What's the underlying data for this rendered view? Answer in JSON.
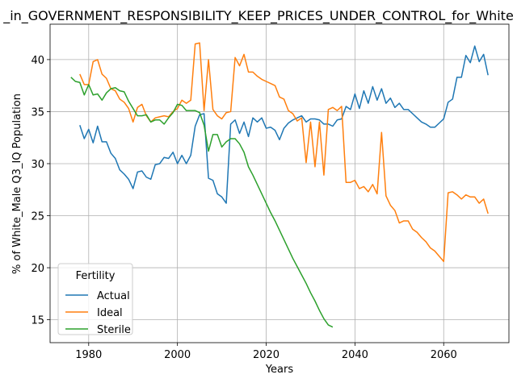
{
  "chart_data": {
    "type": "line",
    "title": "_in_GOVERNMENT_RESPONSIBILITY_KEEP_PRICES_UNDER_CONTROL_for_White",
    "x_label": "Years",
    "y_label": "% of White_Male Q3_IQ Population",
    "legend_title": "Fertility",
    "legend_loc": "lower left",
    "grid": true,
    "xlim": [
      1971.3,
      2074.7
    ],
    "ylim": [
      12.8,
      43.4
    ],
    "xticks": [
      1980,
      2000,
      2020,
      2040,
      2060
    ],
    "yticks": [
      15,
      20,
      25,
      30,
      35,
      40
    ],
    "x": [
      1976,
      1977,
      1978,
      1979,
      1980,
      1981,
      1982,
      1983,
      1984,
      1985,
      1986,
      1987,
      1988,
      1989,
      1990,
      1991,
      1992,
      1993,
      1994,
      1995,
      1996,
      1997,
      1998,
      1999,
      2000,
      2001,
      2002,
      2003,
      2004,
      2005,
      2006,
      2007,
      2008,
      2009,
      2010,
      2011,
      2012,
      2013,
      2014,
      2015,
      2016,
      2017,
      2018,
      2019,
      2020,
      2021,
      2022,
      2023,
      2024,
      2025,
      2026,
      2027,
      2028,
      2029,
      2030,
      2031,
      2032,
      2033,
      2034,
      2035,
      2036,
      2037,
      2038,
      2039,
      2040,
      2041,
      2042,
      2043,
      2044,
      2045,
      2046,
      2047,
      2048,
      2049,
      2050,
      2051,
      2052,
      2053,
      2054,
      2055,
      2056,
      2057,
      2058,
      2059,
      2060,
      2061,
      2062,
      2063,
      2064,
      2065,
      2066,
      2067,
      2068,
      2069,
      2070
    ],
    "series": [
      {
        "name": "Actual",
        "color": "#1f77b4",
        "values": [
          null,
          null,
          33.7,
          32.4,
          33.3,
          32.0,
          33.6,
          32.1,
          32.1,
          31.0,
          30.5,
          29.4,
          29.0,
          28.5,
          27.6,
          29.2,
          29.3,
          28.7,
          28.5,
          29.9,
          30.0,
          30.6,
          30.5,
          31.1,
          30.0,
          30.8,
          30.0,
          30.8,
          33.6,
          34.7,
          34.8,
          28.6,
          28.4,
          27.1,
          26.8,
          26.2,
          33.8,
          34.2,
          32.9,
          34.0,
          32.6,
          34.4,
          34.0,
          34.4,
          33.4,
          33.5,
          33.2,
          32.3,
          33.4,
          33.9,
          34.2,
          34.4,
          34.6,
          34.0,
          34.3,
          34.3,
          34.2,
          33.8,
          33.8,
          33.6,
          34.2,
          34.3,
          35.5,
          35.2,
          36.7,
          35.3,
          37.0,
          35.8,
          37.4,
          36.1,
          37.2,
          35.8,
          36.3,
          35.4,
          35.8,
          35.2,
          35.2,
          34.8,
          34.4,
          34.0,
          33.8,
          33.5,
          33.5,
          33.9,
          34.3,
          35.9,
          36.2,
          38.3,
          38.3,
          40.4,
          39.7,
          41.3,
          39.8,
          40.5,
          38.5
        ]
      },
      {
        "name": "Ideal",
        "color": "#ff7f0e",
        "values": [
          null,
          null,
          38.6,
          37.6,
          37.6,
          39.8,
          40.0,
          38.6,
          38.2,
          37.2,
          37.0,
          36.2,
          35.9,
          35.3,
          34.0,
          35.4,
          35.7,
          34.6,
          34.0,
          34.4,
          34.5,
          34.6,
          34.5,
          35.0,
          35.3,
          36.1,
          35.8,
          36.1,
          41.5,
          41.6,
          35.1,
          40.0,
          35.2,
          34.6,
          34.3,
          34.9,
          35.0,
          40.2,
          39.4,
          40.5,
          38.8,
          38.8,
          38.4,
          38.1,
          37.9,
          37.7,
          37.5,
          36.4,
          36.2,
          35.1,
          34.8,
          34.1,
          34.4,
          30.1,
          34.0,
          29.7,
          34.0,
          28.9,
          35.2,
          35.4,
          35.1,
          35.5,
          28.2,
          28.2,
          28.4,
          27.6,
          27.8,
          27.3,
          28.0,
          27.1,
          33.0,
          26.9,
          26.0,
          25.5,
          24.3,
          24.5,
          24.5,
          23.7,
          23.4,
          22.9,
          22.5,
          21.9,
          21.6,
          21.1,
          20.6,
          27.2,
          27.3,
          27.0,
          26.6,
          27.0,
          26.8,
          26.8,
          26.2,
          26.6,
          25.2
        ]
      },
      {
        "name": "Sterile",
        "color": "#2ca02c",
        "values": [
          38.3,
          37.9,
          37.8,
          36.6,
          37.6,
          36.6,
          36.7,
          36.1,
          36.8,
          37.2,
          37.3,
          37.0,
          36.9,
          36.0,
          35.3,
          34.6,
          34.6,
          34.7,
          34.0,
          34.2,
          34.2,
          33.8,
          34.4,
          34.9,
          35.7,
          35.6,
          35.1,
          35.1,
          35.1,
          34.9,
          33.7,
          31.2,
          32.8,
          32.8,
          31.6,
          32.1,
          32.4,
          32.4,
          31.9,
          31.1,
          29.7,
          28.9,
          28.0,
          27.1,
          26.2,
          25.3,
          24.5,
          23.6,
          22.7,
          21.8,
          20.9,
          20.1,
          19.3,
          18.5,
          17.6,
          16.8,
          15.9,
          15.1,
          14.5,
          14.3,
          null,
          null,
          null,
          null,
          null,
          null,
          null,
          null,
          null,
          null,
          null,
          null,
          null,
          null,
          null,
          null,
          null,
          null,
          null,
          null,
          null,
          null,
          null,
          null,
          null,
          null,
          null,
          null,
          null,
          null,
          null,
          null,
          null,
          null,
          null
        ]
      }
    ]
  }
}
